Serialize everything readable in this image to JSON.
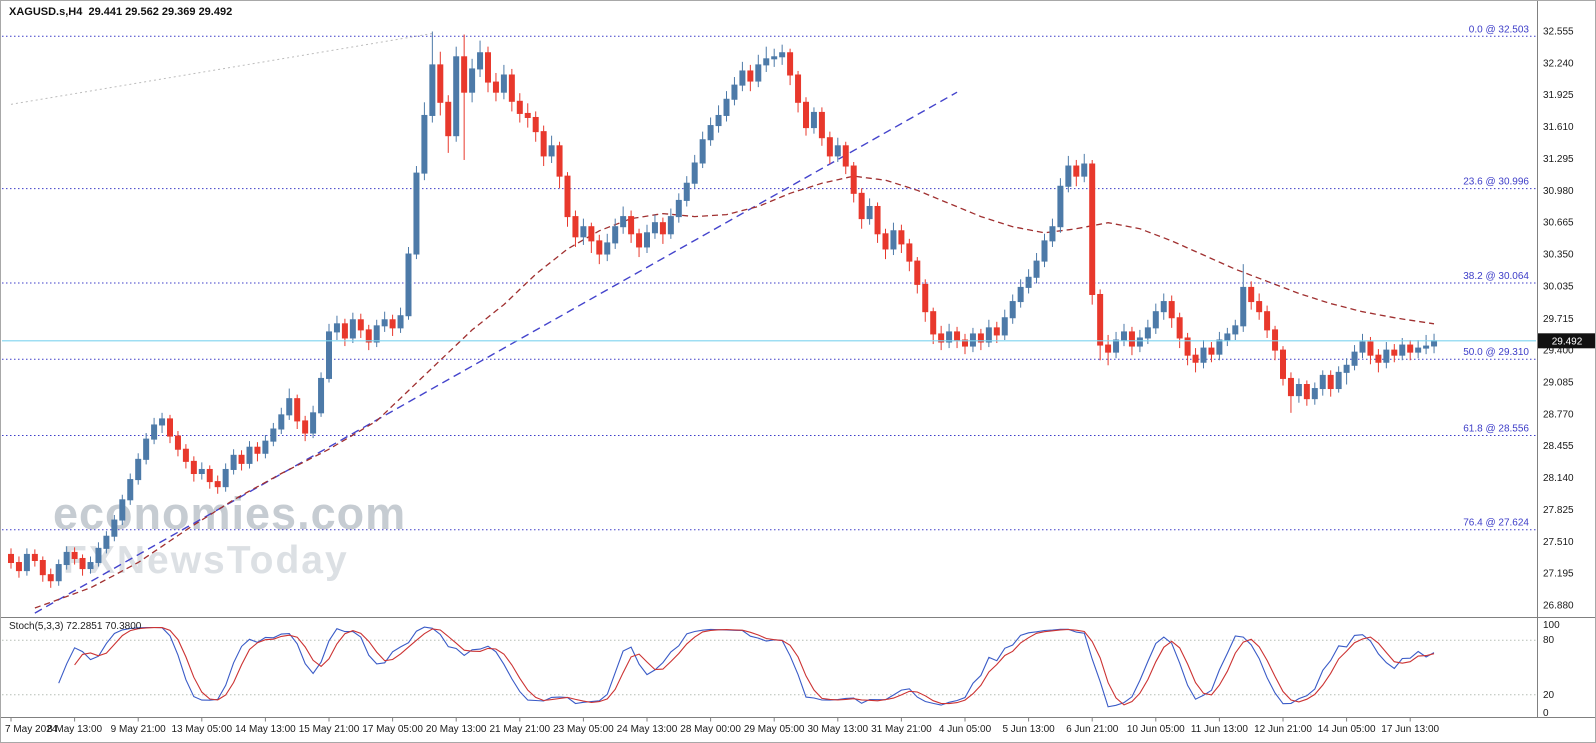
{
  "header": {
    "symbol_period": "XAGUSD.s,H4",
    "open": "29.441",
    "high": "29.562",
    "low": "29.369",
    "close": "29.492",
    "title_full": "XAGUSD.s,H4  29.441 29.562 29.369 29.492"
  },
  "watermark": {
    "line1": "economies.com",
    "line2": "FXNewsToday"
  },
  "colors": {
    "bull": "#4d7aa8",
    "bear": "#e8382c",
    "fib": "#3d3dc8",
    "trend": "#4444cc",
    "ma": "#a03030",
    "guideline": "#bcbcbc",
    "price_line": "#7fd4ef",
    "price_badge_bg": "#111111",
    "price_badge_text": "#ffffff",
    "stoch_k": "#3a5bc7",
    "stoch_d": "#cc3333",
    "stoch_level": "#b5bdb5",
    "axis_text": "#1a1a1a",
    "border": "#808080",
    "watermark1": "#c6ccd2",
    "watermark2": "#dce0e4"
  },
  "y_axis": {
    "ticks": [
      "32.555",
      "32.240",
      "31.925",
      "31.610",
      "31.295",
      "30.980",
      "30.665",
      "30.350",
      "30.035",
      "29.715",
      "29.400",
      "29.085",
      "28.770",
      "28.455",
      "28.140",
      "27.825",
      "27.510",
      "27.195",
      "26.880"
    ],
    "current_price_label": "29.492"
  },
  "fib_levels": [
    {
      "label": "0.0 @ 32.503",
      "price": 32.503
    },
    {
      "label": "23.6 @ 30.996",
      "price": 30.996
    },
    {
      "label": "38.2 @ 30.064",
      "price": 30.064
    },
    {
      "label": "50.0 @ 29.310",
      "price": 29.31
    },
    {
      "label": "61.8 @ 28.556",
      "price": 28.556
    },
    {
      "label": "76.4 @ 27.624",
      "price": 27.624
    }
  ],
  "x_axis": {
    "labels": [
      {
        "i": 0,
        "t": "7 May 2024"
      },
      {
        "i": 8,
        "t": "8 May 13:00"
      },
      {
        "i": 16,
        "t": "9 May 21:00"
      },
      {
        "i": 24,
        "t": "13 May 05:00"
      },
      {
        "i": 32,
        "t": "14 May 13:00"
      },
      {
        "i": 40,
        "t": "15 May 21:00"
      },
      {
        "i": 48,
        "t": "17 May 05:00"
      },
      {
        "i": 56,
        "t": "20 May 13:00"
      },
      {
        "i": 64,
        "t": "21 May 21:00"
      },
      {
        "i": 72,
        "t": "23 May 05:00"
      },
      {
        "i": 80,
        "t": "24 May 13:00"
      },
      {
        "i": 88,
        "t": "28 May 00:00"
      },
      {
        "i": 96,
        "t": "29 May 05:00"
      },
      {
        "i": 104,
        "t": "30 May 13:00"
      },
      {
        "i": 112,
        "t": "31 May 21:00"
      },
      {
        "i": 120,
        "t": "4 Jun 05:00"
      },
      {
        "i": 128,
        "t": "5 Jun 13:00"
      },
      {
        "i": 136,
        "t": "6 Jun 21:00"
      },
      {
        "i": 144,
        "t": "10 Jun 05:00"
      },
      {
        "i": 152,
        "t": "11 Jun 13:00"
      },
      {
        "i": 160,
        "t": "12 Jun 21:00"
      },
      {
        "i": 168,
        "t": "14 Jun 05:00"
      },
      {
        "i": 176,
        "t": "17 Jun 13:00"
      }
    ]
  },
  "stoch": {
    "label": "Stoch(5,3,3) 72.2851 70.3800",
    "k_value": 72.2851,
    "d_value": 70.38,
    "axis_labels": [
      100,
      80,
      20,
      0
    ],
    "level_lines": [
      80,
      20
    ]
  },
  "chart_data": {
    "type": "candlestick",
    "title": "XAGUSD.s,H4",
    "symbol": "XAGUSD.s",
    "timeframe": "H4",
    "x_range": "7 May 2024 - 17 Jun 2024",
    "price_range": [
      26.88,
      32.555
    ],
    "last_ohlc": [
      29.441,
      29.562,
      29.369,
      29.492
    ],
    "candles": [
      [
        27.38,
        27.44,
        27.24,
        27.3
      ],
      [
        27.3,
        27.36,
        27.15,
        27.22
      ],
      [
        27.22,
        27.44,
        27.17,
        27.38
      ],
      [
        27.38,
        27.43,
        27.26,
        27.32
      ],
      [
        27.32,
        27.36,
        27.11,
        27.18
      ],
      [
        27.18,
        27.24,
        27.05,
        27.12
      ],
      [
        27.12,
        27.33,
        27.07,
        27.28
      ],
      [
        27.28,
        27.46,
        27.23,
        27.4
      ],
      [
        27.4,
        27.45,
        27.28,
        27.34
      ],
      [
        27.34,
        27.38,
        27.17,
        27.24
      ],
      [
        27.24,
        27.36,
        27.19,
        27.3
      ],
      [
        27.3,
        27.5,
        27.26,
        27.44
      ],
      [
        27.44,
        27.61,
        27.39,
        27.56
      ],
      [
        27.56,
        27.77,
        27.51,
        27.72
      ],
      [
        27.72,
        27.97,
        27.67,
        27.92
      ],
      [
        27.92,
        28.18,
        27.87,
        28.12
      ],
      [
        28.12,
        28.38,
        28.07,
        28.32
      ],
      [
        28.32,
        28.58,
        28.27,
        28.52
      ],
      [
        28.52,
        28.73,
        28.47,
        28.66
      ],
      [
        28.66,
        28.78,
        28.58,
        28.72
      ],
      [
        28.72,
        28.76,
        28.48,
        28.55
      ],
      [
        28.55,
        28.6,
        28.35,
        28.42
      ],
      [
        28.42,
        28.47,
        28.23,
        28.3
      ],
      [
        28.3,
        28.35,
        28.1,
        28.18
      ],
      [
        28.18,
        28.29,
        28.12,
        28.22
      ],
      [
        28.22,
        28.26,
        28.03,
        28.1
      ],
      [
        28.1,
        28.16,
        27.98,
        28.05
      ],
      [
        28.05,
        28.28,
        28.0,
        28.22
      ],
      [
        28.22,
        28.42,
        28.17,
        28.36
      ],
      [
        28.36,
        28.41,
        28.21,
        28.28
      ],
      [
        28.28,
        28.5,
        28.23,
        28.44
      ],
      [
        28.44,
        28.49,
        28.3,
        28.38
      ],
      [
        28.38,
        28.56,
        28.33,
        28.5
      ],
      [
        28.5,
        28.68,
        28.45,
        28.62
      ],
      [
        28.62,
        28.83,
        28.57,
        28.76
      ],
      [
        28.76,
        29.02,
        28.71,
        28.92
      ],
      [
        28.92,
        28.96,
        28.62,
        28.7
      ],
      [
        28.7,
        28.75,
        28.5,
        28.58
      ],
      [
        28.58,
        28.85,
        28.53,
        28.78
      ],
      [
        28.78,
        29.18,
        28.74,
        29.12
      ],
      [
        29.12,
        29.66,
        29.08,
        29.58
      ],
      [
        29.58,
        29.74,
        29.5,
        29.66
      ],
      [
        29.66,
        29.71,
        29.44,
        29.52
      ],
      [
        29.52,
        29.77,
        29.47,
        29.7
      ],
      [
        29.7,
        29.76,
        29.52,
        29.6
      ],
      [
        29.6,
        29.65,
        29.4,
        29.48
      ],
      [
        29.48,
        29.7,
        29.43,
        29.64
      ],
      [
        29.64,
        29.78,
        29.58,
        29.7
      ],
      [
        29.7,
        29.75,
        29.54,
        29.62
      ],
      [
        29.62,
        29.82,
        29.57,
        29.74
      ],
      [
        29.74,
        30.42,
        29.7,
        30.35
      ],
      [
        30.35,
        31.22,
        30.3,
        31.15
      ],
      [
        31.15,
        31.85,
        31.08,
        31.72
      ],
      [
        31.72,
        32.55,
        31.65,
        32.22
      ],
      [
        32.22,
        32.35,
        31.72,
        31.85
      ],
      [
        31.85,
        31.92,
        31.35,
        31.52
      ],
      [
        31.52,
        32.4,
        31.46,
        32.3
      ],
      [
        32.3,
        32.52,
        31.28,
        31.95
      ],
      [
        31.95,
        32.28,
        31.85,
        32.18
      ],
      [
        32.18,
        32.46,
        32.1,
        32.34
      ],
      [
        32.34,
        32.4,
        31.95,
        32.05
      ],
      [
        32.05,
        32.14,
        31.86,
        31.95
      ],
      [
        31.95,
        32.22,
        31.88,
        32.12
      ],
      [
        32.12,
        32.18,
        31.76,
        31.86
      ],
      [
        31.86,
        31.94,
        31.65,
        31.74
      ],
      [
        31.74,
        31.84,
        31.6,
        31.7
      ],
      [
        31.7,
        31.76,
        31.46,
        31.56
      ],
      [
        31.56,
        31.62,
        31.22,
        31.32
      ],
      [
        31.32,
        31.52,
        31.25,
        31.42
      ],
      [
        31.42,
        31.46,
        31.0,
        31.12
      ],
      [
        31.12,
        31.16,
        30.62,
        30.72
      ],
      [
        30.72,
        30.78,
        30.42,
        30.52
      ],
      [
        30.52,
        30.7,
        30.44,
        30.62
      ],
      [
        30.62,
        30.66,
        30.36,
        30.48
      ],
      [
        30.48,
        30.54,
        30.25,
        30.35
      ],
      [
        30.35,
        30.55,
        30.28,
        30.46
      ],
      [
        30.46,
        30.7,
        30.4,
        30.62
      ],
      [
        30.62,
        30.82,
        30.55,
        30.72
      ],
      [
        30.72,
        30.78,
        30.46,
        30.55
      ],
      [
        30.55,
        30.6,
        30.32,
        30.42
      ],
      [
        30.42,
        30.64,
        30.36,
        30.56
      ],
      [
        30.56,
        30.74,
        30.5,
        30.66
      ],
      [
        30.66,
        30.71,
        30.45,
        30.55
      ],
      [
        30.55,
        30.8,
        30.5,
        30.72
      ],
      [
        30.72,
        30.95,
        30.66,
        30.88
      ],
      [
        30.88,
        31.12,
        30.82,
        31.05
      ],
      [
        31.05,
        31.33,
        31.0,
        31.25
      ],
      [
        31.25,
        31.56,
        31.2,
        31.48
      ],
      [
        31.48,
        31.7,
        31.42,
        31.62
      ],
      [
        31.62,
        31.82,
        31.55,
        31.72
      ],
      [
        31.72,
        31.96,
        31.66,
        31.88
      ],
      [
        31.88,
        32.1,
        31.82,
        32.02
      ],
      [
        32.02,
        32.25,
        31.96,
        32.16
      ],
      [
        32.16,
        32.22,
        31.96,
        32.06
      ],
      [
        32.06,
        32.32,
        32.0,
        32.22
      ],
      [
        32.22,
        32.4,
        32.15,
        32.28
      ],
      [
        32.28,
        32.38,
        32.2,
        32.3
      ],
      [
        32.3,
        32.42,
        32.22,
        32.34
      ],
      [
        32.34,
        32.38,
        32.02,
        32.12
      ],
      [
        32.12,
        32.16,
        31.75,
        31.85
      ],
      [
        31.85,
        31.9,
        31.52,
        31.6
      ],
      [
        31.6,
        31.8,
        31.54,
        31.75
      ],
      [
        31.75,
        31.8,
        31.42,
        31.5
      ],
      [
        31.5,
        31.56,
        31.24,
        31.32
      ],
      [
        31.32,
        31.5,
        31.26,
        31.42
      ],
      [
        31.42,
        31.46,
        31.14,
        31.22
      ],
      [
        31.22,
        31.26,
        30.86,
        30.95
      ],
      [
        30.95,
        31.0,
        30.6,
        30.7
      ],
      [
        30.7,
        30.9,
        30.64,
        30.82
      ],
      [
        30.82,
        30.86,
        30.46,
        30.55
      ],
      [
        30.55,
        30.6,
        30.3,
        30.4
      ],
      [
        30.4,
        30.66,
        30.34,
        30.58
      ],
      [
        30.58,
        30.64,
        30.36,
        30.45
      ],
      [
        30.45,
        30.5,
        30.18,
        30.28
      ],
      [
        30.28,
        30.32,
        29.96,
        30.05
      ],
      [
        30.05,
        30.1,
        29.68,
        29.78
      ],
      [
        29.78,
        29.82,
        29.46,
        29.56
      ],
      [
        29.56,
        29.64,
        29.4,
        29.48
      ],
      [
        29.48,
        29.66,
        29.42,
        29.58
      ],
      [
        29.58,
        29.63,
        29.42,
        29.5
      ],
      [
        29.5,
        29.56,
        29.36,
        29.44
      ],
      [
        29.44,
        29.62,
        29.38,
        29.56
      ],
      [
        29.56,
        29.61,
        29.4,
        29.48
      ],
      [
        29.48,
        29.7,
        29.43,
        29.62
      ],
      [
        29.62,
        29.68,
        29.47,
        29.55
      ],
      [
        29.55,
        29.8,
        29.5,
        29.72
      ],
      [
        29.72,
        29.95,
        29.66,
        29.88
      ],
      [
        29.88,
        30.1,
        29.82,
        30.02
      ],
      [
        30.02,
        30.2,
        29.96,
        30.12
      ],
      [
        30.12,
        30.36,
        30.06,
        30.28
      ],
      [
        30.28,
        30.55,
        30.22,
        30.48
      ],
      [
        30.48,
        30.7,
        30.42,
        30.62
      ],
      [
        30.62,
        31.1,
        30.56,
        31.02
      ],
      [
        31.02,
        31.32,
        30.96,
        31.22
      ],
      [
        31.22,
        31.28,
        31.02,
        31.12
      ],
      [
        31.12,
        31.34,
        31.06,
        31.24
      ],
      [
        31.24,
        31.28,
        29.85,
        29.95
      ],
      [
        29.95,
        30.0,
        29.3,
        29.45
      ],
      [
        29.45,
        29.55,
        29.25,
        29.38
      ],
      [
        29.38,
        29.58,
        29.32,
        29.5
      ],
      [
        29.5,
        29.66,
        29.44,
        29.58
      ],
      [
        29.58,
        29.63,
        29.35,
        29.44
      ],
      [
        29.44,
        29.6,
        29.38,
        29.52
      ],
      [
        29.52,
        29.7,
        29.46,
        29.62
      ],
      [
        29.62,
        29.86,
        29.56,
        29.78
      ],
      [
        29.78,
        29.96,
        29.7,
        29.88
      ],
      [
        29.88,
        29.94,
        29.62,
        29.72
      ],
      [
        29.72,
        29.77,
        29.42,
        29.52
      ],
      [
        29.52,
        29.57,
        29.25,
        29.35
      ],
      [
        29.35,
        29.42,
        29.18,
        29.28
      ],
      [
        29.28,
        29.5,
        29.22,
        29.42
      ],
      [
        29.42,
        29.48,
        29.28,
        29.36
      ],
      [
        29.36,
        29.58,
        29.3,
        29.5
      ],
      [
        29.5,
        29.62,
        29.44,
        29.56
      ],
      [
        29.56,
        29.7,
        29.5,
        29.64
      ],
      [
        29.64,
        30.25,
        29.58,
        30.02
      ],
      [
        30.02,
        30.08,
        29.8,
        29.88
      ],
      [
        29.88,
        29.96,
        29.7,
        29.78
      ],
      [
        29.78,
        29.84,
        29.52,
        29.6
      ],
      [
        29.6,
        29.64,
        29.3,
        29.4
      ],
      [
        29.4,
        29.44,
        29.05,
        29.12
      ],
      [
        29.12,
        29.18,
        28.78,
        28.95
      ],
      [
        28.95,
        29.12,
        28.88,
        29.06
      ],
      [
        29.06,
        29.1,
        28.85,
        28.92
      ],
      [
        28.92,
        29.08,
        28.86,
        29.02
      ],
      [
        29.02,
        29.2,
        28.95,
        29.15
      ],
      [
        29.15,
        29.2,
        28.94,
        29.02
      ],
      [
        29.02,
        29.24,
        28.98,
        29.18
      ],
      [
        29.18,
        29.32,
        29.06,
        29.25
      ],
      [
        29.25,
        29.45,
        29.2,
        29.38
      ],
      [
        29.38,
        29.56,
        29.32,
        29.48
      ],
      [
        29.48,
        29.53,
        29.26,
        29.35
      ],
      [
        29.35,
        29.41,
        29.18,
        29.28
      ],
      [
        29.28,
        29.48,
        29.22,
        29.4
      ],
      [
        29.4,
        29.46,
        29.28,
        29.35
      ],
      [
        29.35,
        29.52,
        29.3,
        29.45
      ],
      [
        29.45,
        29.5,
        29.3,
        29.38
      ],
      [
        29.38,
        29.5,
        29.32,
        29.42
      ],
      [
        29.42,
        29.55,
        29.36,
        29.44
      ],
      [
        29.441,
        29.562,
        29.369,
        29.492
      ]
    ],
    "moving_average": [
      [
        3,
        26.85
      ],
      [
        10,
        27.05
      ],
      [
        16,
        27.3
      ],
      [
        22,
        27.62
      ],
      [
        28,
        27.92
      ],
      [
        34,
        28.18
      ],
      [
        40,
        28.42
      ],
      [
        46,
        28.7
      ],
      [
        50,
        29.0
      ],
      [
        54,
        29.3
      ],
      [
        58,
        29.6
      ],
      [
        62,
        29.85
      ],
      [
        66,
        30.15
      ],
      [
        70,
        30.4
      ],
      [
        74,
        30.58
      ],
      [
        78,
        30.7
      ],
      [
        82,
        30.75
      ],
      [
        86,
        30.72
      ],
      [
        90,
        30.74
      ],
      [
        94,
        30.82
      ],
      [
        98,
        30.95
      ],
      [
        102,
        31.05
      ],
      [
        106,
        31.12
      ],
      [
        110,
        31.08
      ],
      [
        114,
        30.98
      ],
      [
        118,
        30.85
      ],
      [
        122,
        30.72
      ],
      [
        126,
        30.62
      ],
      [
        130,
        30.56
      ],
      [
        134,
        30.6
      ],
      [
        138,
        30.66
      ],
      [
        142,
        30.6
      ],
      [
        146,
        30.48
      ],
      [
        150,
        30.34
      ],
      [
        154,
        30.2
      ],
      [
        158,
        30.08
      ],
      [
        162,
        29.96
      ],
      [
        166,
        29.86
      ],
      [
        170,
        29.78
      ],
      [
        174,
        29.72
      ],
      [
        179,
        29.66
      ]
    ],
    "trendline": {
      "i1": 3,
      "p1": 26.8,
      "i2": 119,
      "p2": 31.95
    },
    "guideline": {
      "i1": 0,
      "p1": 31.83,
      "i2": 53,
      "p2": 32.53
    },
    "current_price": 29.492
  }
}
